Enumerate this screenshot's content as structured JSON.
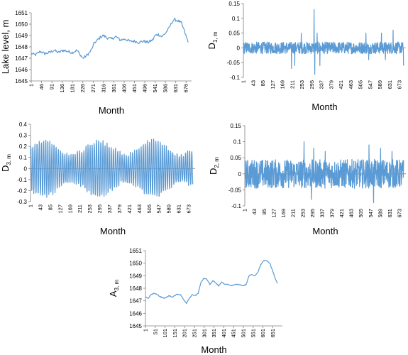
{
  "colors": {
    "series": "#5b9bd5",
    "axis": "#808080"
  },
  "chart_data": [
    {
      "id": "lake",
      "type": "line",
      "xlabel": "Month",
      "ylabel_main": "Lake level, m",
      "ylabel_sub": "",
      "ylim": [
        1645,
        1651
      ],
      "yticks": [
        "1645",
        "1646",
        "1647",
        "1648",
        "1649",
        "1650",
        "1651"
      ],
      "xticks": [
        "1",
        "46",
        "91",
        "136",
        "181",
        "226",
        "271",
        "316",
        "361",
        "406",
        "451",
        "496",
        "541",
        "586",
        "631",
        "676"
      ],
      "xrange": [
        1,
        700
      ],
      "series": [
        {
          "values": [
            [
              1,
              1647.4
            ],
            [
              20,
              1647.3
            ],
            [
              40,
              1647.6
            ],
            [
              60,
              1647.4
            ],
            [
              80,
              1647.5
            ],
            [
              100,
              1647.7
            ],
            [
              120,
              1647.5
            ],
            [
              140,
              1647.7
            ],
            [
              160,
              1647.6
            ],
            [
              180,
              1647.5
            ],
            [
              200,
              1647.7
            ],
            [
              215,
              1647.3
            ],
            [
              226,
              1647.0
            ],
            [
              240,
              1647.2
            ],
            [
              255,
              1647.5
            ],
            [
              265,
              1647.8
            ],
            [
              275,
              1648.3
            ],
            [
              290,
              1648.6
            ],
            [
              305,
              1648.9
            ],
            [
              316,
              1649.0
            ],
            [
              330,
              1648.8
            ],
            [
              350,
              1648.7
            ],
            [
              370,
              1648.9
            ],
            [
              390,
              1648.6
            ],
            [
              410,
              1648.7
            ],
            [
              430,
              1648.5
            ],
            [
              450,
              1648.5
            ],
            [
              470,
              1648.4
            ],
            [
              490,
              1648.5
            ],
            [
              510,
              1648.4
            ],
            [
              530,
              1648.6
            ],
            [
              541,
              1649.0
            ],
            [
              555,
              1649.1
            ],
            [
              570,
              1648.9
            ],
            [
              586,
              1649.2
            ],
            [
              600,
              1649.6
            ],
            [
              615,
              1650.2
            ],
            [
              625,
              1650.4
            ],
            [
              640,
              1650.3
            ],
            [
              655,
              1650.1
            ],
            [
              665,
              1649.6
            ],
            [
              675,
              1649.0
            ],
            [
              685,
              1648.4
            ]
          ]
        }
      ]
    },
    {
      "id": "d1",
      "type": "line",
      "xlabel": "Month",
      "ylabel_main": "D",
      "ylabel_sub": "1, m",
      "ylim": [
        -0.1,
        0.15
      ],
      "yticks": [
        "-0.1",
        "-0.05",
        "0",
        "0.05",
        "0.1",
        "0.15"
      ],
      "xticks": [
        "1",
        "43",
        "85",
        "127",
        "169",
        "211",
        "253",
        "295",
        "337",
        "379",
        "421",
        "463",
        "505",
        "547",
        "589",
        "631",
        "673"
      ],
      "xrange": [
        1,
        700
      ],
      "amplitude": 0.02,
      "spikes": [
        [
          208,
          -0.07
        ],
        [
          222,
          -0.06
        ],
        [
          250,
          0.05
        ],
        [
          305,
          0.13
        ],
        [
          308,
          -0.09
        ],
        [
          318,
          0.05
        ],
        [
          330,
          -0.06
        ],
        [
          528,
          0.05
        ],
        [
          540,
          -0.04
        ],
        [
          595,
          0.05
        ],
        [
          612,
          -0.04
        ],
        [
          645,
          0.06
        ],
        [
          690,
          -0.06
        ],
        [
          695,
          0.04
        ]
      ]
    },
    {
      "id": "d3",
      "type": "line",
      "xlabel": "Month",
      "ylabel_main": "D",
      "ylabel_sub": "3, m",
      "ylim": [
        -0.3,
        0.4
      ],
      "yticks": [
        "-0.3",
        "-0.2",
        "-0.1",
        "0",
        "0.1",
        "0.2",
        "0.3",
        "0.4"
      ],
      "xticks": [
        "1",
        "43",
        "85",
        "127",
        "169",
        "211",
        "253",
        "295",
        "337",
        "379",
        "421",
        "463",
        "505",
        "547",
        "589",
        "631",
        "673"
      ],
      "xrange": [
        1,
        700
      ],
      "amplitude": 0.25,
      "period": 9
    },
    {
      "id": "d2",
      "type": "line",
      "xlabel": "Month",
      "ylabel_main": "D",
      "ylabel_sub": "2, m",
      "ylim": [
        -0.1,
        0.15
      ],
      "yticks": [
        "-0.1",
        "-0.05",
        "0",
        "0.05",
        "0.1",
        "0.15"
      ],
      "xticks": [
        "1",
        "43",
        "85",
        "127",
        "169",
        "211",
        "253",
        "295",
        "337",
        "379",
        "421",
        "463",
        "505",
        "547",
        "589",
        "631",
        "673"
      ],
      "xrange": [
        1,
        700
      ],
      "amplitude": 0.045,
      "spikes": [
        [
          258,
          0.1
        ],
        [
          290,
          -0.08
        ],
        [
          300,
          0.08
        ],
        [
          350,
          0.07
        ],
        [
          540,
          0.09
        ],
        [
          560,
          -0.09
        ],
        [
          590,
          0.08
        ],
        [
          640,
          0.07
        ]
      ]
    },
    {
      "id": "a3",
      "type": "line",
      "xlabel": "Month",
      "ylabel_main": "A",
      "ylabel_sub": "3, m",
      "ylim": [
        1645,
        1651
      ],
      "yticks": [
        "1645",
        "1646",
        "1647",
        "1648",
        "1649",
        "1650",
        "1651"
      ],
      "xticks": [
        "1",
        "51",
        "101",
        "151",
        "201",
        "251",
        "301",
        "351",
        "401",
        "451",
        "501",
        "551",
        "601",
        "651"
      ],
      "xrange": [
        1,
        700
      ],
      "series": [
        {
          "values": [
            [
              1,
              1647.3
            ],
            [
              15,
              1647.2
            ],
            [
              30,
              1647.5
            ],
            [
              45,
              1647.6
            ],
            [
              60,
              1647.5
            ],
            [
              80,
              1647.3
            ],
            [
              100,
              1647.2
            ],
            [
              120,
              1647.4
            ],
            [
              140,
              1647.3
            ],
            [
              160,
              1647.5
            ],
            [
              180,
              1647.5
            ],
            [
              195,
              1647.1
            ],
            [
              210,
              1646.8
            ],
            [
              225,
              1647.2
            ],
            [
              240,
              1647.5
            ],
            [
              255,
              1647.4
            ],
            [
              270,
              1647.6
            ],
            [
              285,
              1648.5
            ],
            [
              300,
              1648.8
            ],
            [
              315,
              1648.7
            ],
            [
              330,
              1648.3
            ],
            [
              345,
              1648.6
            ],
            [
              360,
              1648.4
            ],
            [
              375,
              1648.2
            ],
            [
              390,
              1648.5
            ],
            [
              405,
              1648.3
            ],
            [
              420,
              1648.3
            ],
            [
              440,
              1648.2
            ],
            [
              460,
              1648.3
            ],
            [
              480,
              1648.3
            ],
            [
              500,
              1648.2
            ],
            [
              515,
              1648.3
            ],
            [
              530,
              1649.0
            ],
            [
              545,
              1649.1
            ],
            [
              560,
              1649.0
            ],
            [
              575,
              1649.3
            ],
            [
              590,
              1649.9
            ],
            [
              605,
              1650.2
            ],
            [
              620,
              1650.2
            ],
            [
              635,
              1650.0
            ],
            [
              650,
              1649.4
            ],
            [
              665,
              1648.7
            ],
            [
              675,
              1648.4
            ]
          ]
        }
      ]
    }
  ]
}
